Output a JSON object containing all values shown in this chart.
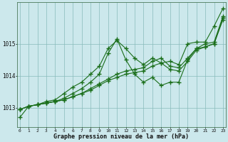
{
  "title": "Graphe pression niveau de la mer (hPa)",
  "bg_color": "#cce8ec",
  "grid_color": "#88bbbb",
  "line_color": "#1a6e1a",
  "x_ticks": [
    0,
    1,
    2,
    3,
    4,
    5,
    6,
    7,
    8,
    9,
    10,
    11,
    12,
    13,
    14,
    15,
    16,
    17,
    18,
    19,
    20,
    21,
    22,
    23
  ],
  "ylim": [
    1012.4,
    1016.3
  ],
  "yticks": [
    1013,
    1014,
    1015
  ],
  "series": [
    [
      1012.7,
      1013.05,
      1013.1,
      1013.2,
      1013.25,
      1013.45,
      1013.65,
      1013.8,
      1014.05,
      1014.3,
      1014.85,
      1015.1,
      1014.85,
      1014.55,
      1014.35,
      1014.55,
      1014.4,
      1014.45,
      1014.35,
      1015.0,
      1015.05,
      1015.05,
      1015.55,
      1016.1
    ],
    [
      1012.95,
      1013.05,
      1013.1,
      1013.15,
      1013.2,
      1013.3,
      1013.45,
      1013.6,
      1013.8,
      1014.05,
      1014.7,
      1015.15,
      1014.5,
      1014.05,
      1013.8,
      1013.95,
      1013.7,
      1013.8,
      1013.8,
      1014.5,
      1014.85,
      1015.0,
      1015.05,
      1015.85
    ],
    [
      1012.95,
      1013.05,
      1013.1,
      1013.15,
      1013.2,
      1013.25,
      1013.35,
      1013.45,
      1013.6,
      1013.75,
      1013.9,
      1014.05,
      1014.15,
      1014.2,
      1014.25,
      1014.45,
      1014.55,
      1014.3,
      1014.25,
      1014.55,
      1014.85,
      1014.9,
      1015.0,
      1015.8
    ],
    [
      1012.95,
      1013.05,
      1013.1,
      1013.15,
      1013.2,
      1013.25,
      1013.35,
      1013.45,
      1013.55,
      1013.7,
      1013.85,
      1013.95,
      1014.05,
      1014.1,
      1014.15,
      1014.3,
      1014.4,
      1014.2,
      1014.15,
      1014.45,
      1014.8,
      1014.9,
      1015.0,
      1015.75
    ]
  ]
}
